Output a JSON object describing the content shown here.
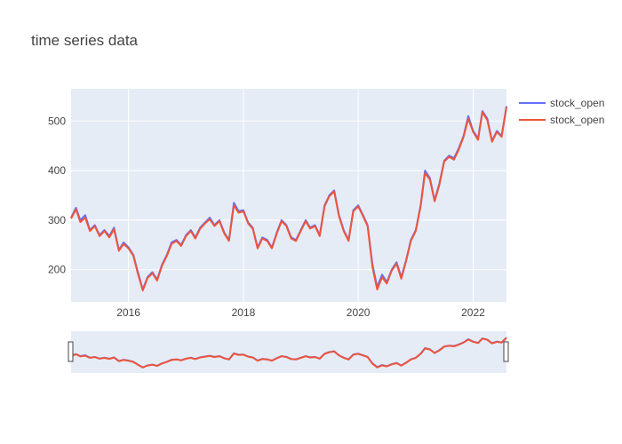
{
  "chart_data": {
    "type": "line",
    "title": "time series data",
    "xlabel": "",
    "ylabel": "",
    "x_range": [
      "2015-01-01",
      "2022-08-01"
    ],
    "ylim": [
      135,
      565
    ],
    "x_ticks": [
      "2016",
      "2018",
      "2020",
      "2022"
    ],
    "y_ticks": [
      200,
      300,
      400,
      500
    ],
    "grid": true,
    "legend_position": "top-right",
    "rangeslider": true,
    "series": [
      {
        "name": "stock_open",
        "color": "#636efa",
        "points": [
          [
            "2015-01-01",
            305
          ],
          [
            "2015-02-01",
            325
          ],
          [
            "2015-03-01",
            300
          ],
          [
            "2015-04-01",
            310
          ],
          [
            "2015-05-01",
            280
          ],
          [
            "2015-06-01",
            290
          ],
          [
            "2015-07-01",
            270
          ],
          [
            "2015-08-01",
            280
          ],
          [
            "2015-09-01",
            268
          ],
          [
            "2015-10-01",
            285
          ],
          [
            "2015-11-01",
            240
          ],
          [
            "2015-12-01",
            255
          ],
          [
            "2016-01-01",
            245
          ],
          [
            "2016-02-01",
            230
          ],
          [
            "2016-03-01",
            195
          ],
          [
            "2016-04-01",
            160
          ],
          [
            "2016-05-01",
            185
          ],
          [
            "2016-06-01",
            195
          ],
          [
            "2016-07-01",
            180
          ],
          [
            "2016-08-01",
            210
          ],
          [
            "2016-09-01",
            230
          ],
          [
            "2016-10-01",
            255
          ],
          [
            "2016-11-01",
            260
          ],
          [
            "2016-12-01",
            250
          ],
          [
            "2017-01-01",
            270
          ],
          [
            "2017-02-01",
            280
          ],
          [
            "2017-03-01",
            265
          ],
          [
            "2017-04-01",
            285
          ],
          [
            "2017-05-01",
            295
          ],
          [
            "2017-06-01",
            305
          ],
          [
            "2017-07-01",
            290
          ],
          [
            "2017-08-01",
            300
          ],
          [
            "2017-09-01",
            275
          ],
          [
            "2017-10-01",
            260
          ],
          [
            "2017-11-01",
            335
          ],
          [
            "2017-12-01",
            318
          ],
          [
            "2018-01-01",
            320
          ],
          [
            "2018-02-01",
            295
          ],
          [
            "2018-03-01",
            285
          ],
          [
            "2018-04-01",
            245
          ],
          [
            "2018-05-01",
            265
          ],
          [
            "2018-06-01",
            260
          ],
          [
            "2018-07-01",
            245
          ],
          [
            "2018-08-01",
            275
          ],
          [
            "2018-09-01",
            300
          ],
          [
            "2018-10-01",
            290
          ],
          [
            "2018-11-01",
            265
          ],
          [
            "2018-12-01",
            260
          ],
          [
            "2019-01-01",
            280
          ],
          [
            "2019-02-01",
            300
          ],
          [
            "2019-03-01",
            285
          ],
          [
            "2019-04-01",
            290
          ],
          [
            "2019-05-01",
            270
          ],
          [
            "2019-06-01",
            330
          ],
          [
            "2019-07-01",
            350
          ],
          [
            "2019-08-01",
            360
          ],
          [
            "2019-09-01",
            310
          ],
          [
            "2019-10-01",
            280
          ],
          [
            "2019-11-01",
            260
          ],
          [
            "2019-12-01",
            320
          ],
          [
            "2020-01-01",
            330
          ],
          [
            "2020-02-01",
            310
          ],
          [
            "2020-03-01",
            290
          ],
          [
            "2020-04-01",
            210
          ],
          [
            "2020-05-01",
            165
          ],
          [
            "2020-06-01",
            190
          ],
          [
            "2020-07-01",
            175
          ],
          [
            "2020-08-01",
            200
          ],
          [
            "2020-09-01",
            215
          ],
          [
            "2020-10-01",
            185
          ],
          [
            "2020-11-01",
            220
          ],
          [
            "2020-12-01",
            260
          ],
          [
            "2021-01-01",
            280
          ],
          [
            "2021-02-01",
            330
          ],
          [
            "2021-03-01",
            400
          ],
          [
            "2021-04-01",
            385
          ],
          [
            "2021-05-01",
            340
          ],
          [
            "2021-06-01",
            375
          ],
          [
            "2021-07-01",
            420
          ],
          [
            "2021-08-01",
            430
          ],
          [
            "2021-09-01",
            425
          ],
          [
            "2021-10-01",
            445
          ],
          [
            "2021-11-01",
            470
          ],
          [
            "2021-12-01",
            510
          ],
          [
            "2022-01-01",
            480
          ],
          [
            "2022-02-01",
            465
          ],
          [
            "2022-03-01",
            520
          ],
          [
            "2022-04-01",
            505
          ],
          [
            "2022-05-01",
            460
          ],
          [
            "2022-06-01",
            480
          ],
          [
            "2022-07-01",
            470
          ],
          [
            "2022-08-01",
            530
          ]
        ]
      },
      {
        "name": "stock_open",
        "color": "#ef553b",
        "points": [
          [
            "2015-01-01",
            303
          ],
          [
            "2015-02-01",
            322
          ],
          [
            "2015-03-01",
            296
          ],
          [
            "2015-04-01",
            305
          ],
          [
            "2015-05-01",
            278
          ],
          [
            "2015-06-01",
            288
          ],
          [
            "2015-07-01",
            268
          ],
          [
            "2015-08-01",
            278
          ],
          [
            "2015-09-01",
            265
          ],
          [
            "2015-10-01",
            282
          ],
          [
            "2015-11-01",
            238
          ],
          [
            "2015-12-01",
            252
          ],
          [
            "2016-01-01",
            243
          ],
          [
            "2016-02-01",
            228
          ],
          [
            "2016-03-01",
            192
          ],
          [
            "2016-04-01",
            158
          ],
          [
            "2016-05-01",
            183
          ],
          [
            "2016-06-01",
            193
          ],
          [
            "2016-07-01",
            178
          ],
          [
            "2016-08-01",
            208
          ],
          [
            "2016-09-01",
            228
          ],
          [
            "2016-10-01",
            252
          ],
          [
            "2016-11-01",
            258
          ],
          [
            "2016-12-01",
            248
          ],
          [
            "2017-01-01",
            268
          ],
          [
            "2017-02-01",
            278
          ],
          [
            "2017-03-01",
            263
          ],
          [
            "2017-04-01",
            283
          ],
          [
            "2017-05-01",
            293
          ],
          [
            "2017-06-01",
            302
          ],
          [
            "2017-07-01",
            288
          ],
          [
            "2017-08-01",
            298
          ],
          [
            "2017-09-01",
            273
          ],
          [
            "2017-10-01",
            258
          ],
          [
            "2017-11-01",
            330
          ],
          [
            "2017-12-01",
            315
          ],
          [
            "2018-01-01",
            318
          ],
          [
            "2018-02-01",
            293
          ],
          [
            "2018-03-01",
            283
          ],
          [
            "2018-04-01",
            243
          ],
          [
            "2018-05-01",
            263
          ],
          [
            "2018-06-01",
            258
          ],
          [
            "2018-07-01",
            243
          ],
          [
            "2018-08-01",
            273
          ],
          [
            "2018-09-01",
            298
          ],
          [
            "2018-10-01",
            288
          ],
          [
            "2018-11-01",
            263
          ],
          [
            "2018-12-01",
            258
          ],
          [
            "2019-01-01",
            278
          ],
          [
            "2019-02-01",
            298
          ],
          [
            "2019-03-01",
            283
          ],
          [
            "2019-04-01",
            288
          ],
          [
            "2019-05-01",
            268
          ],
          [
            "2019-06-01",
            328
          ],
          [
            "2019-07-01",
            348
          ],
          [
            "2019-08-01",
            358
          ],
          [
            "2019-09-01",
            308
          ],
          [
            "2019-10-01",
            278
          ],
          [
            "2019-11-01",
            258
          ],
          [
            "2019-12-01",
            318
          ],
          [
            "2020-01-01",
            328
          ],
          [
            "2020-02-01",
            308
          ],
          [
            "2020-03-01",
            288
          ],
          [
            "2020-04-01",
            205
          ],
          [
            "2020-05-01",
            160
          ],
          [
            "2020-06-01",
            185
          ],
          [
            "2020-07-01",
            172
          ],
          [
            "2020-08-01",
            198
          ],
          [
            "2020-09-01",
            212
          ],
          [
            "2020-10-01",
            182
          ],
          [
            "2020-11-01",
            218
          ],
          [
            "2020-12-01",
            258
          ],
          [
            "2021-01-01",
            278
          ],
          [
            "2021-02-01",
            328
          ],
          [
            "2021-03-01",
            395
          ],
          [
            "2021-04-01",
            382
          ],
          [
            "2021-05-01",
            338
          ],
          [
            "2021-06-01",
            372
          ],
          [
            "2021-07-01",
            418
          ],
          [
            "2021-08-01",
            428
          ],
          [
            "2021-09-01",
            422
          ],
          [
            "2021-10-01",
            442
          ],
          [
            "2021-11-01",
            468
          ],
          [
            "2021-12-01",
            505
          ],
          [
            "2022-01-01",
            478
          ],
          [
            "2022-02-01",
            462
          ],
          [
            "2022-03-01",
            518
          ],
          [
            "2022-04-01",
            502
          ],
          [
            "2022-05-01",
            458
          ],
          [
            "2022-06-01",
            478
          ],
          [
            "2022-07-01",
            468
          ],
          [
            "2022-08-01",
            528
          ]
        ]
      }
    ]
  }
}
